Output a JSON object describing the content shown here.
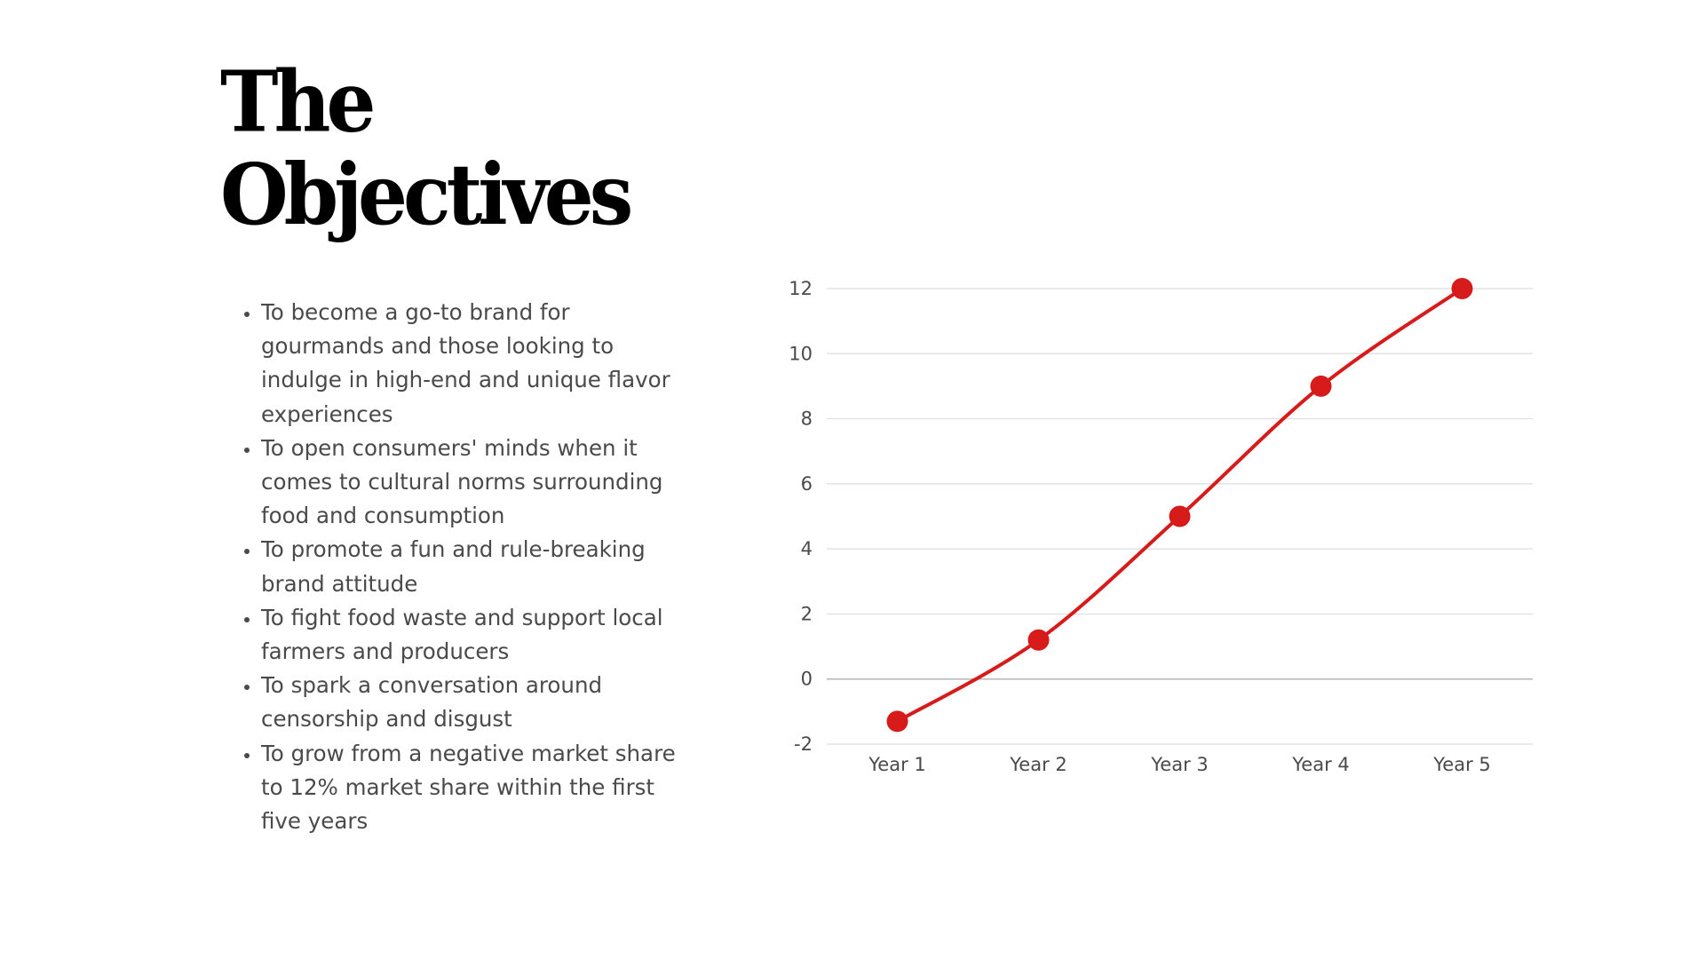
{
  "title": {
    "line1": "The",
    "line2": "Objectives"
  },
  "objectives": [
    "To become a go-to brand for gourmands and those looking to indulge in high-end and unique flavor experiences",
    "To open consumers' minds when it comes to cultural norms surrounding food and consumption",
    "To promote a fun and rule-breaking brand attitude",
    "To fight food waste and support local farmers and producers",
    "To spark a conversation around censorship and disgust",
    "To grow from a negative market share to 12% market share within the first five years"
  ],
  "chart_data": {
    "type": "line",
    "categories": [
      "Year 1",
      "Year 2",
      "Year 3",
      "Year 4",
      "Year 5"
    ],
    "series": [
      {
        "values": [
          -1.3,
          1.2,
          5,
          9,
          12
        ],
        "color": "#d71a1a"
      }
    ],
    "title": "",
    "xlabel": "",
    "ylabel": "",
    "ylim": [
      -2,
      12
    ],
    "yticks": [
      -2,
      0,
      2,
      4,
      6,
      8,
      10,
      12
    ],
    "grid": true,
    "legend": "none",
    "smooth": true,
    "markers": true
  }
}
